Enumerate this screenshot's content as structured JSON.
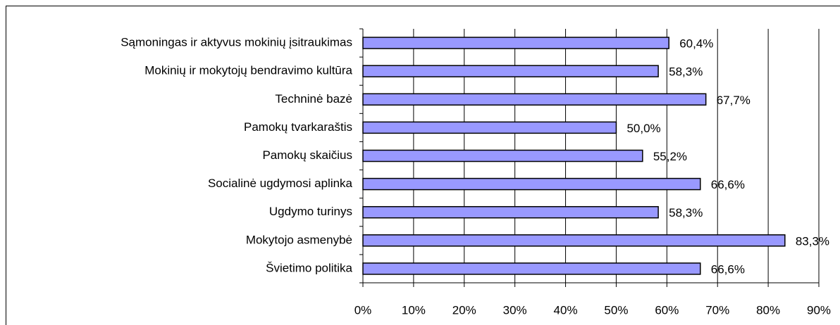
{
  "chart_data": {
    "type": "hbar",
    "categories": [
      "Sąmoningas ir aktyvus mokinių įsitraukimas",
      "Mokinių ir  mokytojų bendravimo kultūra",
      "Techninė bazė",
      "Pamokų tvarkaraštis",
      "Pamokų skaičius",
      "Socialinė ugdymosi aplinka",
      "Ugdymo turinys",
      "Mokytojo asmenybė",
      "Švietimo politika"
    ],
    "values": [
      60.4,
      58.3,
      67.7,
      50.0,
      55.2,
      66.6,
      58.3,
      83.3,
      66.6
    ],
    "value_labels": [
      "60,4%",
      "58,3%",
      "67,7%",
      "50,0%",
      "55,2%",
      "66,6%",
      "58,3%",
      "83,3%",
      "66,6%"
    ],
    "color": "#9999ff",
    "xlim": [
      0,
      90
    ],
    "xticks": [
      {
        "value": 0,
        "label": "0%"
      },
      {
        "value": 10,
        "label": "10%"
      },
      {
        "value": 20,
        "label": "20%"
      },
      {
        "value": 30,
        "label": "30%"
      },
      {
        "value": 40,
        "label": "40%"
      },
      {
        "value": 50,
        "label": "50%"
      },
      {
        "value": 60,
        "label": "60%"
      },
      {
        "value": 70,
        "label": "70%"
      },
      {
        "value": 80,
        "label": "80%"
      },
      {
        "value": 90,
        "label": "90%"
      }
    ],
    "grid": true
  }
}
